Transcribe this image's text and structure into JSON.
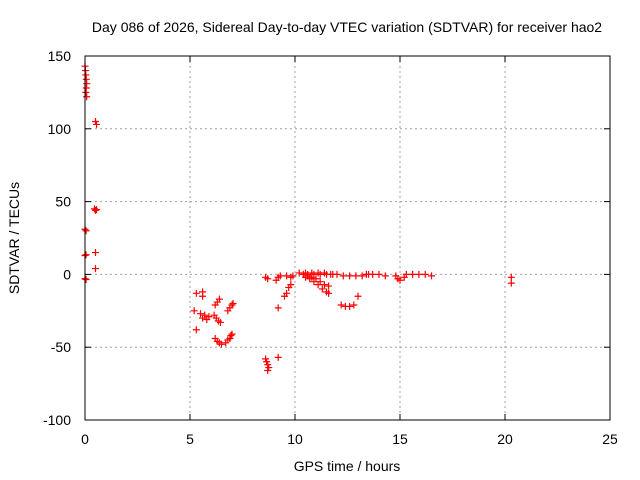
{
  "chart_data": {
    "type": "scatter",
    "title": "Day 086 of 2026, Sidereal Day-to-day VTEC variation (SDTVAR) for receiver hao2",
    "xlabel": "GPS time / hours",
    "ylabel": "SDTVAR / TECUs",
    "xlim": [
      0,
      25
    ],
    "ylim": [
      -100,
      150
    ],
    "xticks": [
      0,
      5,
      10,
      15,
      20,
      25
    ],
    "yticks": [
      -100,
      -50,
      0,
      50,
      100,
      150
    ],
    "xtick_labels": [
      "0",
      "5",
      "10",
      "15",
      "20",
      "25"
    ],
    "ytick_labels": [
      "-100",
      "-50",
      "0",
      "50",
      "100",
      "150"
    ],
    "grid": true,
    "marker": "+",
    "series_color": "#ff0000",
    "series": [
      {
        "name": "SDTVAR",
        "points": [
          [
            0.0,
            143
          ],
          [
            0.02,
            140
          ],
          [
            0.04,
            137
          ],
          [
            0.06,
            134
          ],
          [
            0.08,
            131
          ],
          [
            0.06,
            128
          ],
          [
            0.04,
            125
          ],
          [
            0.08,
            122
          ],
          [
            0.5,
            105
          ],
          [
            0.55,
            103
          ],
          [
            0.45,
            45
          ],
          [
            0.5,
            44
          ],
          [
            0.55,
            44.5
          ],
          [
            0.0,
            31
          ],
          [
            0.05,
            30
          ],
          [
            0.5,
            15
          ],
          [
            0.0,
            13
          ],
          [
            0.05,
            13.5
          ],
          [
            0.5,
            4
          ],
          [
            0.0,
            -3
          ],
          [
            0.05,
            -3.5
          ],
          [
            5.3,
            -13
          ],
          [
            5.6,
            -12
          ],
          [
            5.6,
            -15
          ],
          [
            5.2,
            -25
          ],
          [
            5.5,
            -27
          ],
          [
            5.6,
            -30
          ],
          [
            5.7,
            -28
          ],
          [
            5.8,
            -31
          ],
          [
            5.9,
            -29
          ],
          [
            5.3,
            -38
          ],
          [
            6.2,
            -21
          ],
          [
            6.3,
            -19
          ],
          [
            6.4,
            -17
          ],
          [
            6.15,
            -28
          ],
          [
            6.25,
            -30
          ],
          [
            6.35,
            -32
          ],
          [
            6.45,
            -33
          ],
          [
            6.2,
            -44
          ],
          [
            6.3,
            -46
          ],
          [
            6.4,
            -47
          ],
          [
            6.5,
            -48
          ],
          [
            6.8,
            -25
          ],
          [
            6.9,
            -23
          ],
          [
            7.0,
            -21
          ],
          [
            7.05,
            -20
          ],
          [
            6.7,
            -47
          ],
          [
            6.8,
            -45
          ],
          [
            6.9,
            -44
          ],
          [
            6.95,
            -42
          ],
          [
            7.0,
            -41
          ],
          [
            8.6,
            -2
          ],
          [
            8.7,
            -3
          ],
          [
            8.6,
            -58
          ],
          [
            8.65,
            -60
          ],
          [
            8.7,
            -62
          ],
          [
            8.75,
            -64
          ],
          [
            8.7,
            -66
          ],
          [
            9.2,
            -57
          ],
          [
            9.1,
            -4
          ],
          [
            9.2,
            -2
          ],
          [
            9.3,
            -1
          ],
          [
            9.2,
            -23
          ],
          [
            9.5,
            -15
          ],
          [
            9.6,
            -13
          ],
          [
            9.7,
            -9
          ],
          [
            9.8,
            -7
          ],
          [
            9.6,
            -1
          ],
          [
            9.8,
            -2
          ],
          [
            9.9,
            -1
          ],
          [
            10.2,
            1
          ],
          [
            10.4,
            0
          ],
          [
            10.5,
            -2
          ],
          [
            10.7,
            -3
          ],
          [
            10.9,
            -5
          ],
          [
            11.1,
            -7
          ],
          [
            11.3,
            -10
          ],
          [
            11.5,
            -12
          ],
          [
            11.6,
            -13
          ],
          [
            10.6,
            -1
          ],
          [
            10.8,
            -2
          ],
          [
            11.0,
            -3
          ],
          [
            11.2,
            -5
          ],
          [
            11.4,
            -7
          ],
          [
            11.6,
            -8
          ],
          [
            10.5,
            1
          ],
          [
            10.8,
            1
          ],
          [
            11.1,
            1
          ],
          [
            11.4,
            1
          ],
          [
            11.7,
            0
          ],
          [
            12.0,
            0
          ],
          [
            10.6,
            0
          ],
          [
            10.9,
            0
          ],
          [
            11.2,
            0
          ],
          [
            11.5,
            0
          ],
          [
            11.8,
            0
          ],
          [
            12.2,
            -21
          ],
          [
            12.4,
            -22
          ],
          [
            12.6,
            -22
          ],
          [
            12.8,
            -21
          ],
          [
            12.3,
            -1
          ],
          [
            12.6,
            -1
          ],
          [
            12.9,
            -1
          ],
          [
            13.2,
            -1
          ],
          [
            13.5,
            0
          ],
          [
            13.0,
            -15
          ],
          [
            13.4,
            0
          ],
          [
            13.7,
            0
          ],
          [
            14.0,
            0
          ],
          [
            14.3,
            -1
          ],
          [
            14.8,
            -1
          ],
          [
            14.9,
            -3
          ],
          [
            15.0,
            -4
          ],
          [
            15.2,
            -2
          ],
          [
            15.3,
            0
          ],
          [
            15.6,
            0
          ],
          [
            15.9,
            0
          ],
          [
            16.2,
            0
          ],
          [
            16.5,
            -1
          ],
          [
            20.3,
            -2
          ],
          [
            20.3,
            -6
          ]
        ]
      }
    ]
  }
}
